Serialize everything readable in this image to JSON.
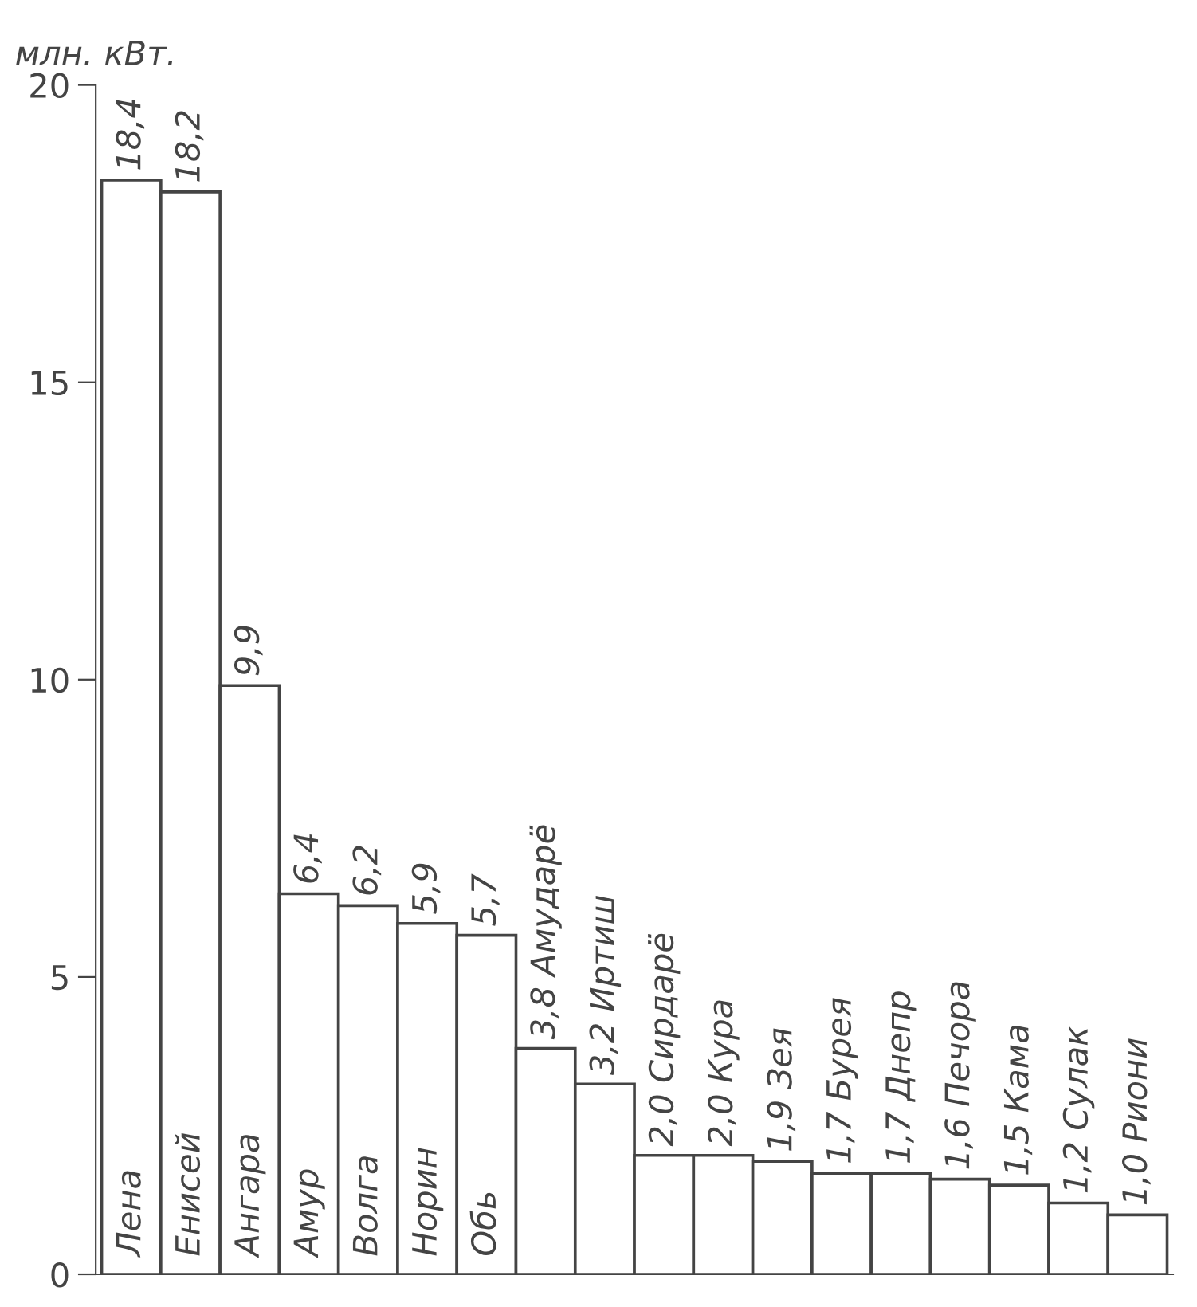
{
  "chart_data": {
    "type": "bar",
    "ylabel": "млн. кВт.",
    "categories": [
      "Лена",
      "Енисей",
      "Ангара",
      "Амур",
      "Волга",
      "Норин",
      "Обь",
      "Амударё",
      "Иртиш",
      "Сирдарё",
      "Кура",
      "Зея",
      "Бурея",
      "Днепр",
      "Печора",
      "Кама",
      "Сулак",
      "Риони"
    ],
    "values": [
      18.4,
      18.2,
      9.9,
      6.4,
      6.2,
      5.9,
      5.7,
      3.8,
      3.2,
      2.0,
      2.0,
      1.9,
      1.7,
      1.7,
      1.6,
      1.5,
      1.2,
      1.0
    ],
    "value_labels": [
      "18,4",
      "18,2",
      "9,9",
      "6,4",
      "6,2",
      "5,9",
      "5,7",
      "3,8",
      "3,2",
      "2,0",
      "2,0",
      "1,9",
      "1,7",
      "1,7",
      "1,6",
      "1,5",
      "1,2",
      "1,0"
    ],
    "color": "#ffffff",
    "ylim": [
      0,
      20
    ],
    "yticks": [
      0,
      5,
      10,
      15,
      20
    ],
    "grid": false,
    "legend": false
  }
}
